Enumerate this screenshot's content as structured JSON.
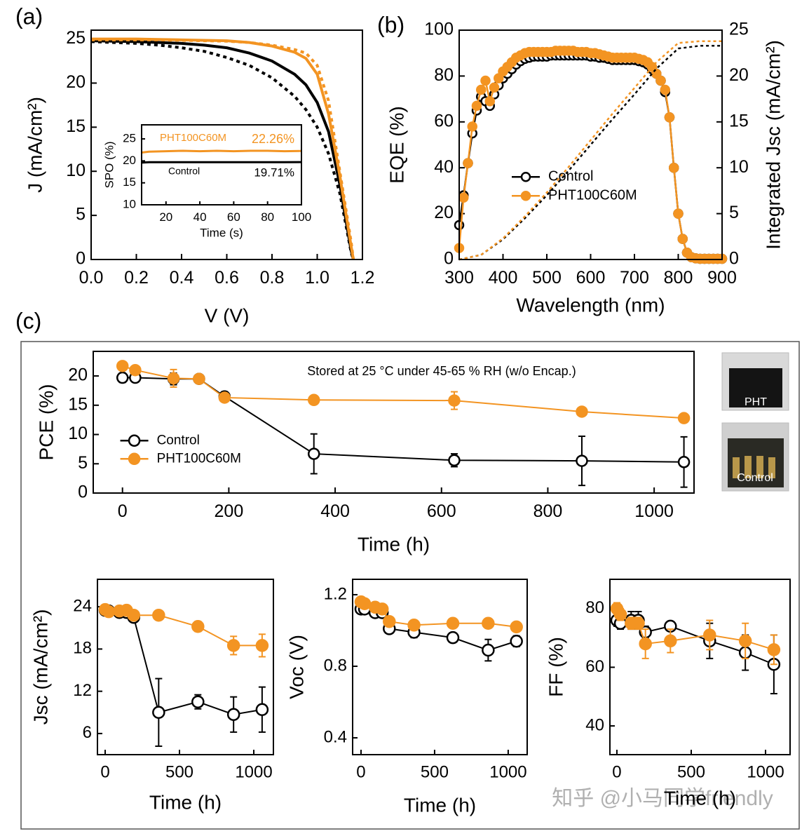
{
  "panel_labels": [
    "(a)",
    "(b)",
    "(c)"
  ],
  "photos": [
    {
      "label": "PHT"
    },
    {
      "label": "Control"
    }
  ],
  "watermark": "知乎 @小马同学friendly",
  "chart_data": [
    {
      "type": "line",
      "xlabel": "V (V)",
      "ylabel": "J (mA/cm²)",
      "xlim": [
        0,
        1.2
      ],
      "ylim": [
        0,
        26
      ],
      "xticks": [
        {
          "value": 0,
          "label": "0.0"
        },
        0.2,
        0.4,
        0.6,
        0.8,
        {
          "value": 1,
          "label": "1.0"
        },
        1.2
      ],
      "yticks": [
        0,
        5,
        10,
        15,
        20,
        25
      ],
      "x": [
        0,
        0.1,
        0.2,
        0.3,
        0.4,
        0.5,
        0.6,
        0.7,
        0.8,
        0.9,
        0.95,
        1.0,
        1.05,
        1.1,
        1.15,
        1.16
      ],
      "series": [
        {
          "color": "#000000",
          "style": "dotted",
          "values": [
            24.7,
            24.6,
            24.5,
            24.3,
            24.0,
            23.6,
            22.9,
            22.0,
            20.6,
            18.5,
            17.0,
            15.0,
            12.0,
            7.5,
            0.8,
            0
          ]
        },
        {
          "color": "#000000",
          "style": "solid",
          "values": [
            24.8,
            24.75,
            24.7,
            24.6,
            24.5,
            24.3,
            24.0,
            23.4,
            22.5,
            21.0,
            19.8,
            17.8,
            14.5,
            8.5,
            1.0,
            0
          ]
        },
        {
          "color": "#f39422",
          "style": "dotted",
          "values": [
            24.9,
            24.9,
            24.9,
            24.9,
            24.85,
            24.8,
            24.75,
            24.6,
            24.3,
            23.8,
            23.4,
            22.0,
            18.0,
            10.0,
            2.0,
            0
          ]
        },
        {
          "color": "#f39422",
          "style": "solid",
          "values": [
            25.0,
            25.0,
            25.0,
            24.95,
            24.9,
            24.85,
            24.8,
            24.6,
            24.2,
            23.5,
            22.8,
            21.0,
            16.5,
            9.5,
            1.5,
            0
          ]
        }
      ]
    },
    {
      "type": "line",
      "xlabel": "Time (s)",
      "ylabel": "SPO (%)",
      "xlim": [
        5.6,
        100
      ],
      "ylim": [
        10,
        28.2
      ],
      "xticks": [
        20,
        40,
        60,
        80,
        100
      ],
      "yticks": [
        10,
        15,
        20,
        25
      ],
      "x": [
        5.6,
        10,
        20,
        30,
        40,
        50,
        60,
        70,
        80,
        90,
        100
      ],
      "series": [
        {
          "name": "PHT100C60M",
          "color": "#f39422",
          "style": "solid",
          "values": [
            21.9,
            22.1,
            22.2,
            22.3,
            22.2,
            22.3,
            22.2,
            22.3,
            22.3,
            22.2,
            22.26
          ]
        },
        {
          "name": "Control",
          "color": "#000000",
          "style": "solid",
          "values": [
            19.6,
            19.7,
            19.7,
            19.7,
            19.7,
            19.7,
            19.7,
            19.7,
            19.7,
            19.7,
            19.71
          ]
        }
      ],
      "annotations": [
        "22.26%",
        "19.71%"
      ]
    },
    {
      "type": "line",
      "xlabel": "Wavelength (nm)",
      "ylabel": "EQE (%)",
      "y2label": "Integrated Jsc (mA/cm²)",
      "xlim": [
        300,
        900
      ],
      "ylim": [
        0,
        100
      ],
      "y2lim": [
        0,
        25
      ],
      "xticks": [
        300,
        400,
        500,
        600,
        700,
        800,
        900
      ],
      "yticks": [
        0,
        20,
        40,
        60,
        80,
        100
      ],
      "y2ticks": [
        0,
        5,
        10,
        15,
        20,
        25
      ],
      "legend": "center",
      "x": [
        300,
        310,
        320,
        330,
        340,
        350,
        360,
        370,
        380,
        390,
        400,
        410,
        420,
        430,
        440,
        450,
        460,
        470,
        480,
        490,
        500,
        510,
        520,
        530,
        540,
        550,
        560,
        570,
        580,
        590,
        600,
        610,
        620,
        630,
        640,
        650,
        660,
        670,
        680,
        690,
        700,
        710,
        720,
        730,
        740,
        750,
        760,
        770,
        780,
        790,
        800,
        810,
        820,
        830,
        840,
        850,
        860,
        870,
        880,
        890,
        900
      ],
      "series": [
        {
          "name": "Control",
          "color": "#000000",
          "style": "solid",
          "marker": "open",
          "values": [
            15,
            28,
            42,
            55,
            65,
            71,
            69,
            67,
            72,
            76,
            79,
            81,
            83,
            85,
            86.5,
            87.5,
            88,
            88.5,
            88.5,
            88.5,
            88.5,
            89,
            89,
            89,
            89,
            89,
            89,
            89,
            89,
            89,
            88.5,
            88.5,
            88,
            88,
            87.5,
            87,
            87,
            87,
            87,
            87,
            87,
            86.5,
            86,
            85,
            83,
            81,
            78,
            73,
            62,
            40,
            20,
            9,
            3,
            1,
            0.5,
            0.3,
            0.3,
            0.3,
            0.3,
            0.3,
            0.3
          ]
        },
        {
          "name": "PHT100C60M",
          "color": "#f39422",
          "style": "solid",
          "marker": "filled",
          "values": [
            5,
            27,
            42,
            58,
            67,
            74,
            78,
            69,
            75,
            79,
            82,
            84,
            86,
            88,
            89,
            90,
            90.5,
            90.5,
            90.5,
            90.5,
            90.5,
            90.5,
            91,
            91,
            91,
            91,
            91,
            90.5,
            90.5,
            90.5,
            90,
            90,
            89.5,
            89,
            88.5,
            88,
            88,
            88,
            88,
            88,
            88,
            87.5,
            87,
            86,
            84,
            81,
            78,
            74,
            62,
            40,
            20,
            9,
            3,
            1,
            0.5,
            0.3,
            0.3,
            0.3,
            0.3,
            0.3,
            0.3
          ]
        },
        {
          "color": "#000000",
          "style": "dotted",
          "axis": "y2",
          "x": [
            300,
            350,
            400,
            450,
            500,
            550,
            600,
            650,
            700,
            750,
            800,
            850,
            900
          ],
          "values": [
            0,
            0.5,
            2.2,
            4.5,
            7.0,
            9.7,
            12.5,
            15.3,
            18.0,
            20.8,
            23.0,
            23.3,
            23.3
          ]
        },
        {
          "color": "#f39422",
          "style": "dotted",
          "axis": "y2",
          "x": [
            300,
            350,
            400,
            450,
            500,
            550,
            600,
            650,
            700,
            750,
            800,
            850,
            900
          ],
          "values": [
            0,
            0.5,
            2.3,
            4.7,
            7.3,
            10.1,
            13.0,
            15.9,
            18.7,
            21.5,
            23.6,
            23.8,
            23.8
          ]
        }
      ]
    },
    {
      "type": "line",
      "xlabel": "Time (h)",
      "ylabel": "PCE (%)",
      "xlim": [
        -55,
        1075
      ],
      "ylim": [
        0,
        24.2
      ],
      "xticks": [
        0,
        200,
        400,
        600,
        800,
        1000
      ],
      "yticks": [
        0,
        5,
        10,
        15,
        20
      ],
      "legend": "center left",
      "annotations": [
        "Stored at 25 °C under 45-65 % RH (w/o Encap.)"
      ],
      "x": [
        0,
        24,
        96,
        144,
        192,
        360,
        624,
        864,
        1056
      ],
      "series": [
        {
          "name": "Control",
          "color": "#000000",
          "style": "solid",
          "marker": "open",
          "values": [
            19.7,
            19.7,
            19.5,
            19.5,
            16.5,
            6.7,
            5.6,
            5.5,
            5.3
          ],
          "error": [
            0.8,
            0.3,
            1.0,
            0.6,
            0.8,
            3.4,
            1.1,
            4.2,
            4.3
          ]
        },
        {
          "name": "PHT100C60M",
          "color": "#f39422",
          "style": "solid",
          "marker": "filled",
          "values": [
            21.7,
            21.0,
            19.6,
            19.5,
            16.3,
            15.9,
            15.8,
            13.9,
            12.8
          ],
          "error": [
            0.5,
            0.4,
            1.5,
            0.6,
            0.5,
            0.3,
            1.5,
            0.6,
            0.3
          ]
        }
      ]
    },
    {
      "type": "line",
      "xlabel": "Time (h)",
      "ylabel": "Jsc (mA/cm²)",
      "xlim": [
        -52,
        1132
      ],
      "ylim": [
        3,
        27.9
      ],
      "xticks": [
        0,
        500,
        1000
      ],
      "yticks": [
        6,
        12,
        18,
        24
      ],
      "x": [
        0,
        24,
        96,
        144,
        192,
        360,
        624,
        864,
        1056
      ],
      "series": [
        {
          "color": "#000000",
          "style": "solid",
          "marker": "open",
          "values": [
            23.5,
            23.4,
            23.2,
            23.2,
            22.5,
            9.0,
            10.5,
            8.7,
            9.4
          ],
          "error": [
            0.3,
            0.3,
            0.5,
            0.4,
            0.4,
            4.8,
            1.0,
            2.5,
            3.2
          ]
        },
        {
          "color": "#f39422",
          "style": "solid",
          "marker": "filled",
          "values": [
            23.6,
            23.3,
            23.4,
            23.5,
            22.8,
            22.8,
            21.2,
            18.5,
            18.5
          ],
          "error": [
            0.3,
            0.3,
            0.3,
            0.3,
            0.3,
            0.3,
            0.7,
            1.3,
            1.6
          ]
        }
      ]
    },
    {
      "type": "line",
      "xlabel": "Time (h)",
      "ylabel": "Voc (V)",
      "xlim": [
        -57,
        1129
      ],
      "ylim": [
        0.306,
        1.286
      ],
      "xticks": [
        0,
        500,
        1000
      ],
      "yticks": [
        0.4,
        0.8,
        1.2
      ],
      "x": [
        0,
        24,
        96,
        144,
        192,
        360,
        624,
        864,
        1056
      ],
      "series": [
        {
          "color": "#000000",
          "style": "solid",
          "marker": "open",
          "values": [
            1.12,
            1.12,
            1.1,
            1.1,
            1.01,
            0.99,
            0.96,
            0.89,
            0.94
          ],
          "error": [
            0.01,
            0.01,
            0.02,
            0.02,
            0.02,
            0.03,
            0.02,
            0.06,
            0.03
          ]
        },
        {
          "color": "#f39422",
          "style": "solid",
          "marker": "filled",
          "values": [
            1.16,
            1.15,
            1.13,
            1.12,
            1.05,
            1.03,
            1.04,
            1.04,
            1.02
          ],
          "error": [
            0.01,
            0.01,
            0.01,
            0.01,
            0.01,
            0.01,
            0.01,
            0.01,
            0.01
          ]
        }
      ]
    },
    {
      "type": "line",
      "xlabel": "Time (h)",
      "ylabel": "FF (%)",
      "xlim": [
        -47,
        1165
      ],
      "ylim": [
        30.2,
        90
      ],
      "xticks": [
        0,
        500,
        1000
      ],
      "yticks": [
        40,
        60,
        80
      ],
      "x": [
        0,
        24,
        96,
        144,
        192,
        360,
        624,
        864,
        1056
      ],
      "series": [
        {
          "color": "#000000",
          "style": "solid",
          "marker": "open",
          "values": [
            76,
            75,
            76,
            76,
            72,
            74,
            69,
            65,
            61
          ],
          "error": [
            2,
            2,
            3,
            3,
            2,
            1,
            6,
            6,
            10
          ]
        },
        {
          "color": "#f39422",
          "style": "solid",
          "marker": "filled",
          "values": [
            80,
            78,
            75,
            75,
            68,
            69,
            71,
            69,
            66
          ],
          "error": [
            2,
            2,
            2,
            2,
            5,
            4,
            5,
            6,
            5
          ]
        }
      ]
    }
  ]
}
